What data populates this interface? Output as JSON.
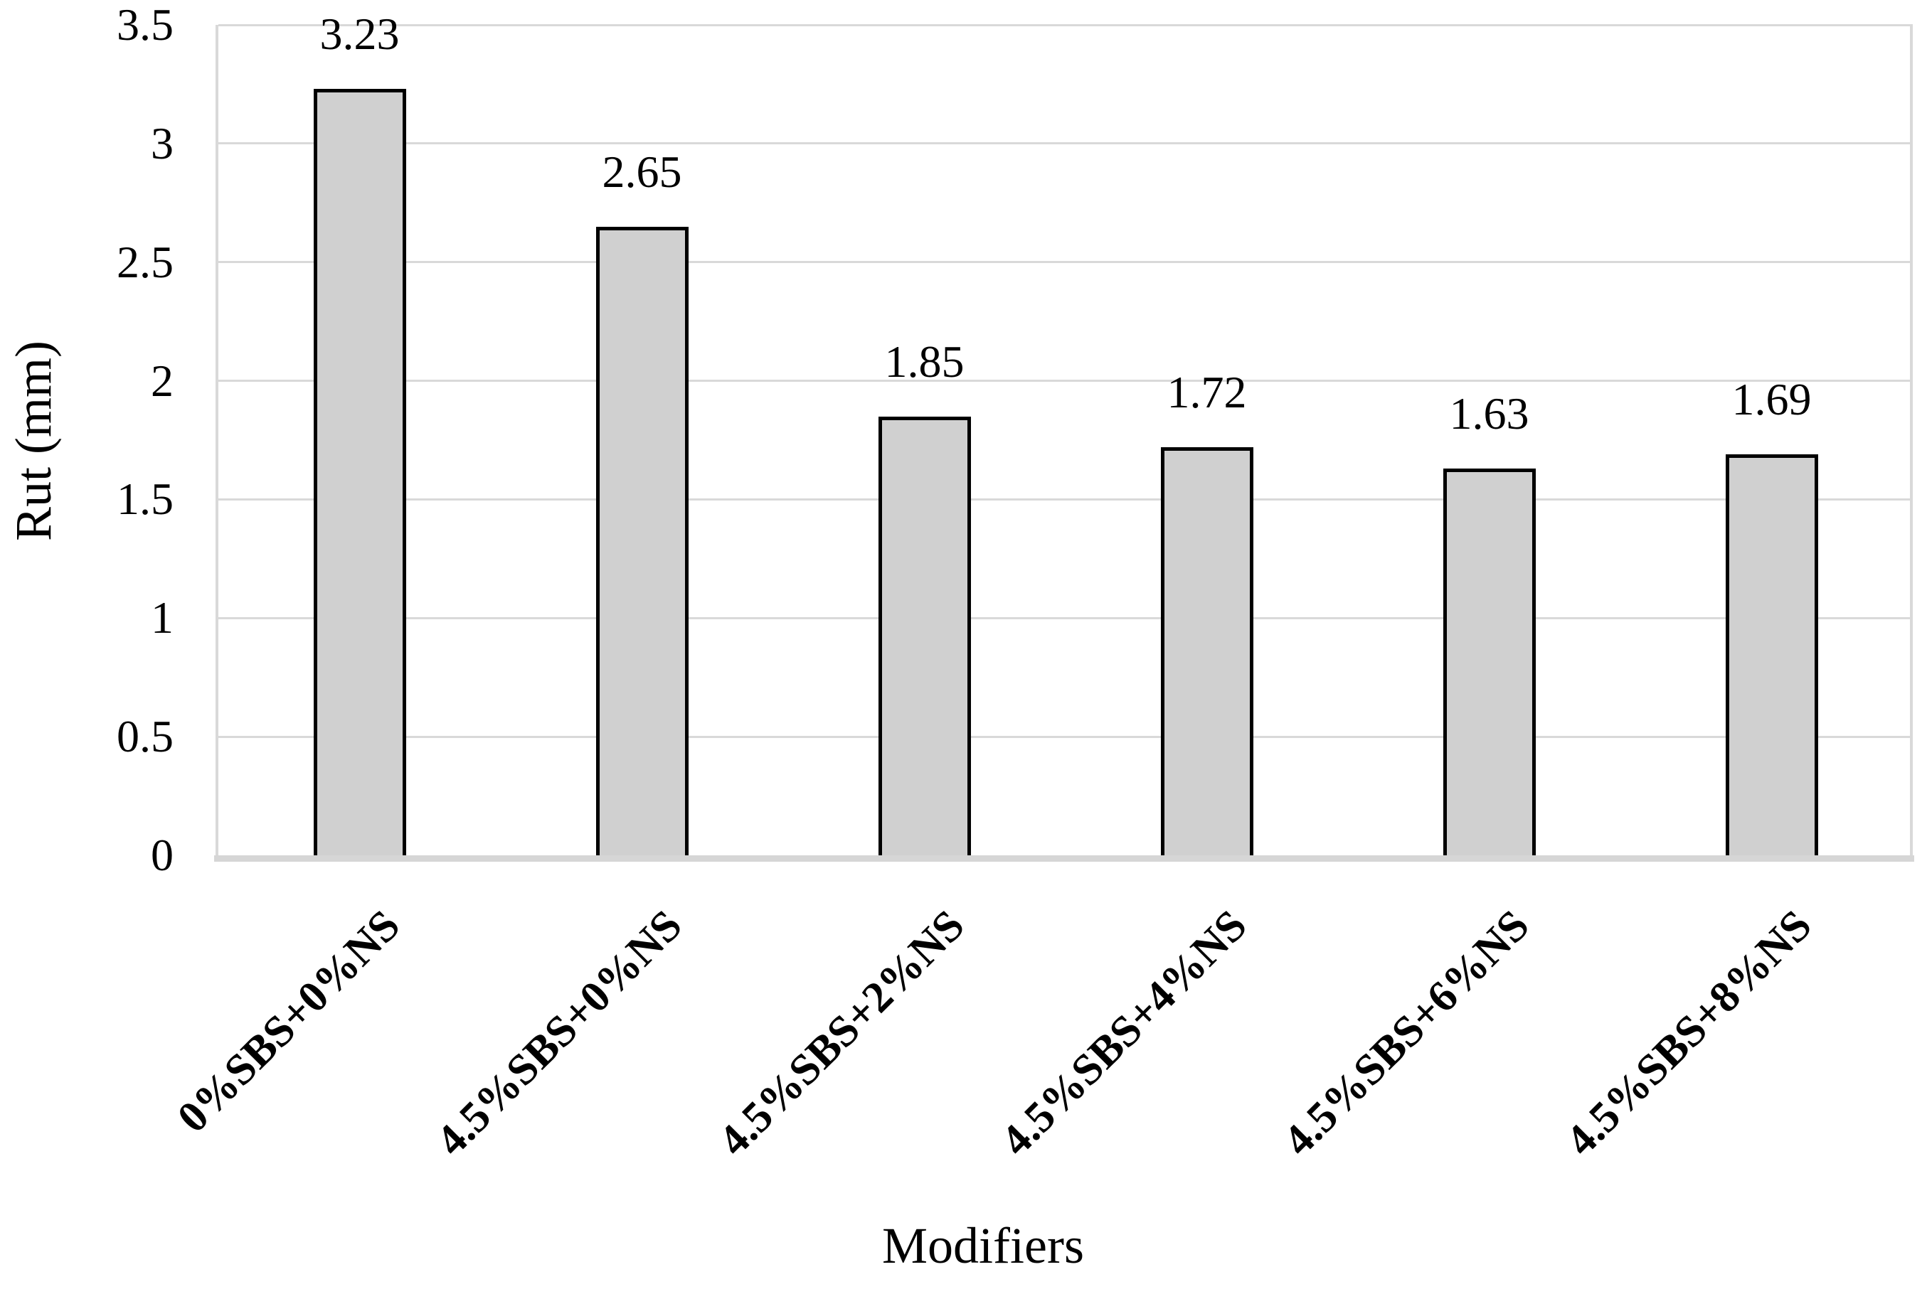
{
  "chart_data": {
    "type": "bar",
    "title": "",
    "categories": [
      "0%SBS+0%NS",
      "4.5%SBS+0%NS",
      "4.5%SBS+2%NS",
      "4.5%SBS+4%NS",
      "4.5%SBS+6%NS",
      "4.5%SBS+8%NS"
    ],
    "values": [
      3.23,
      2.65,
      1.85,
      1.72,
      1.63,
      1.69
    ],
    "value_labels": [
      "3.23",
      "2.65",
      "1.85",
      "1.72",
      "1.63",
      "1.69"
    ],
    "xlabel": "Modifiers",
    "ylabel": "Rut (mm)",
    "ylim": [
      0,
      3.5
    ],
    "ytick_step": 0.5,
    "ytick_labels": [
      "0",
      "0.5",
      "1",
      "1.5",
      "2",
      "2.5",
      "3",
      "3.5"
    ],
    "grid": true,
    "legend": false,
    "bar_fill": "#d0d0d0",
    "bar_border": "#000000",
    "gridline_color": "#d9d9d9",
    "text_color": "#000000"
  }
}
